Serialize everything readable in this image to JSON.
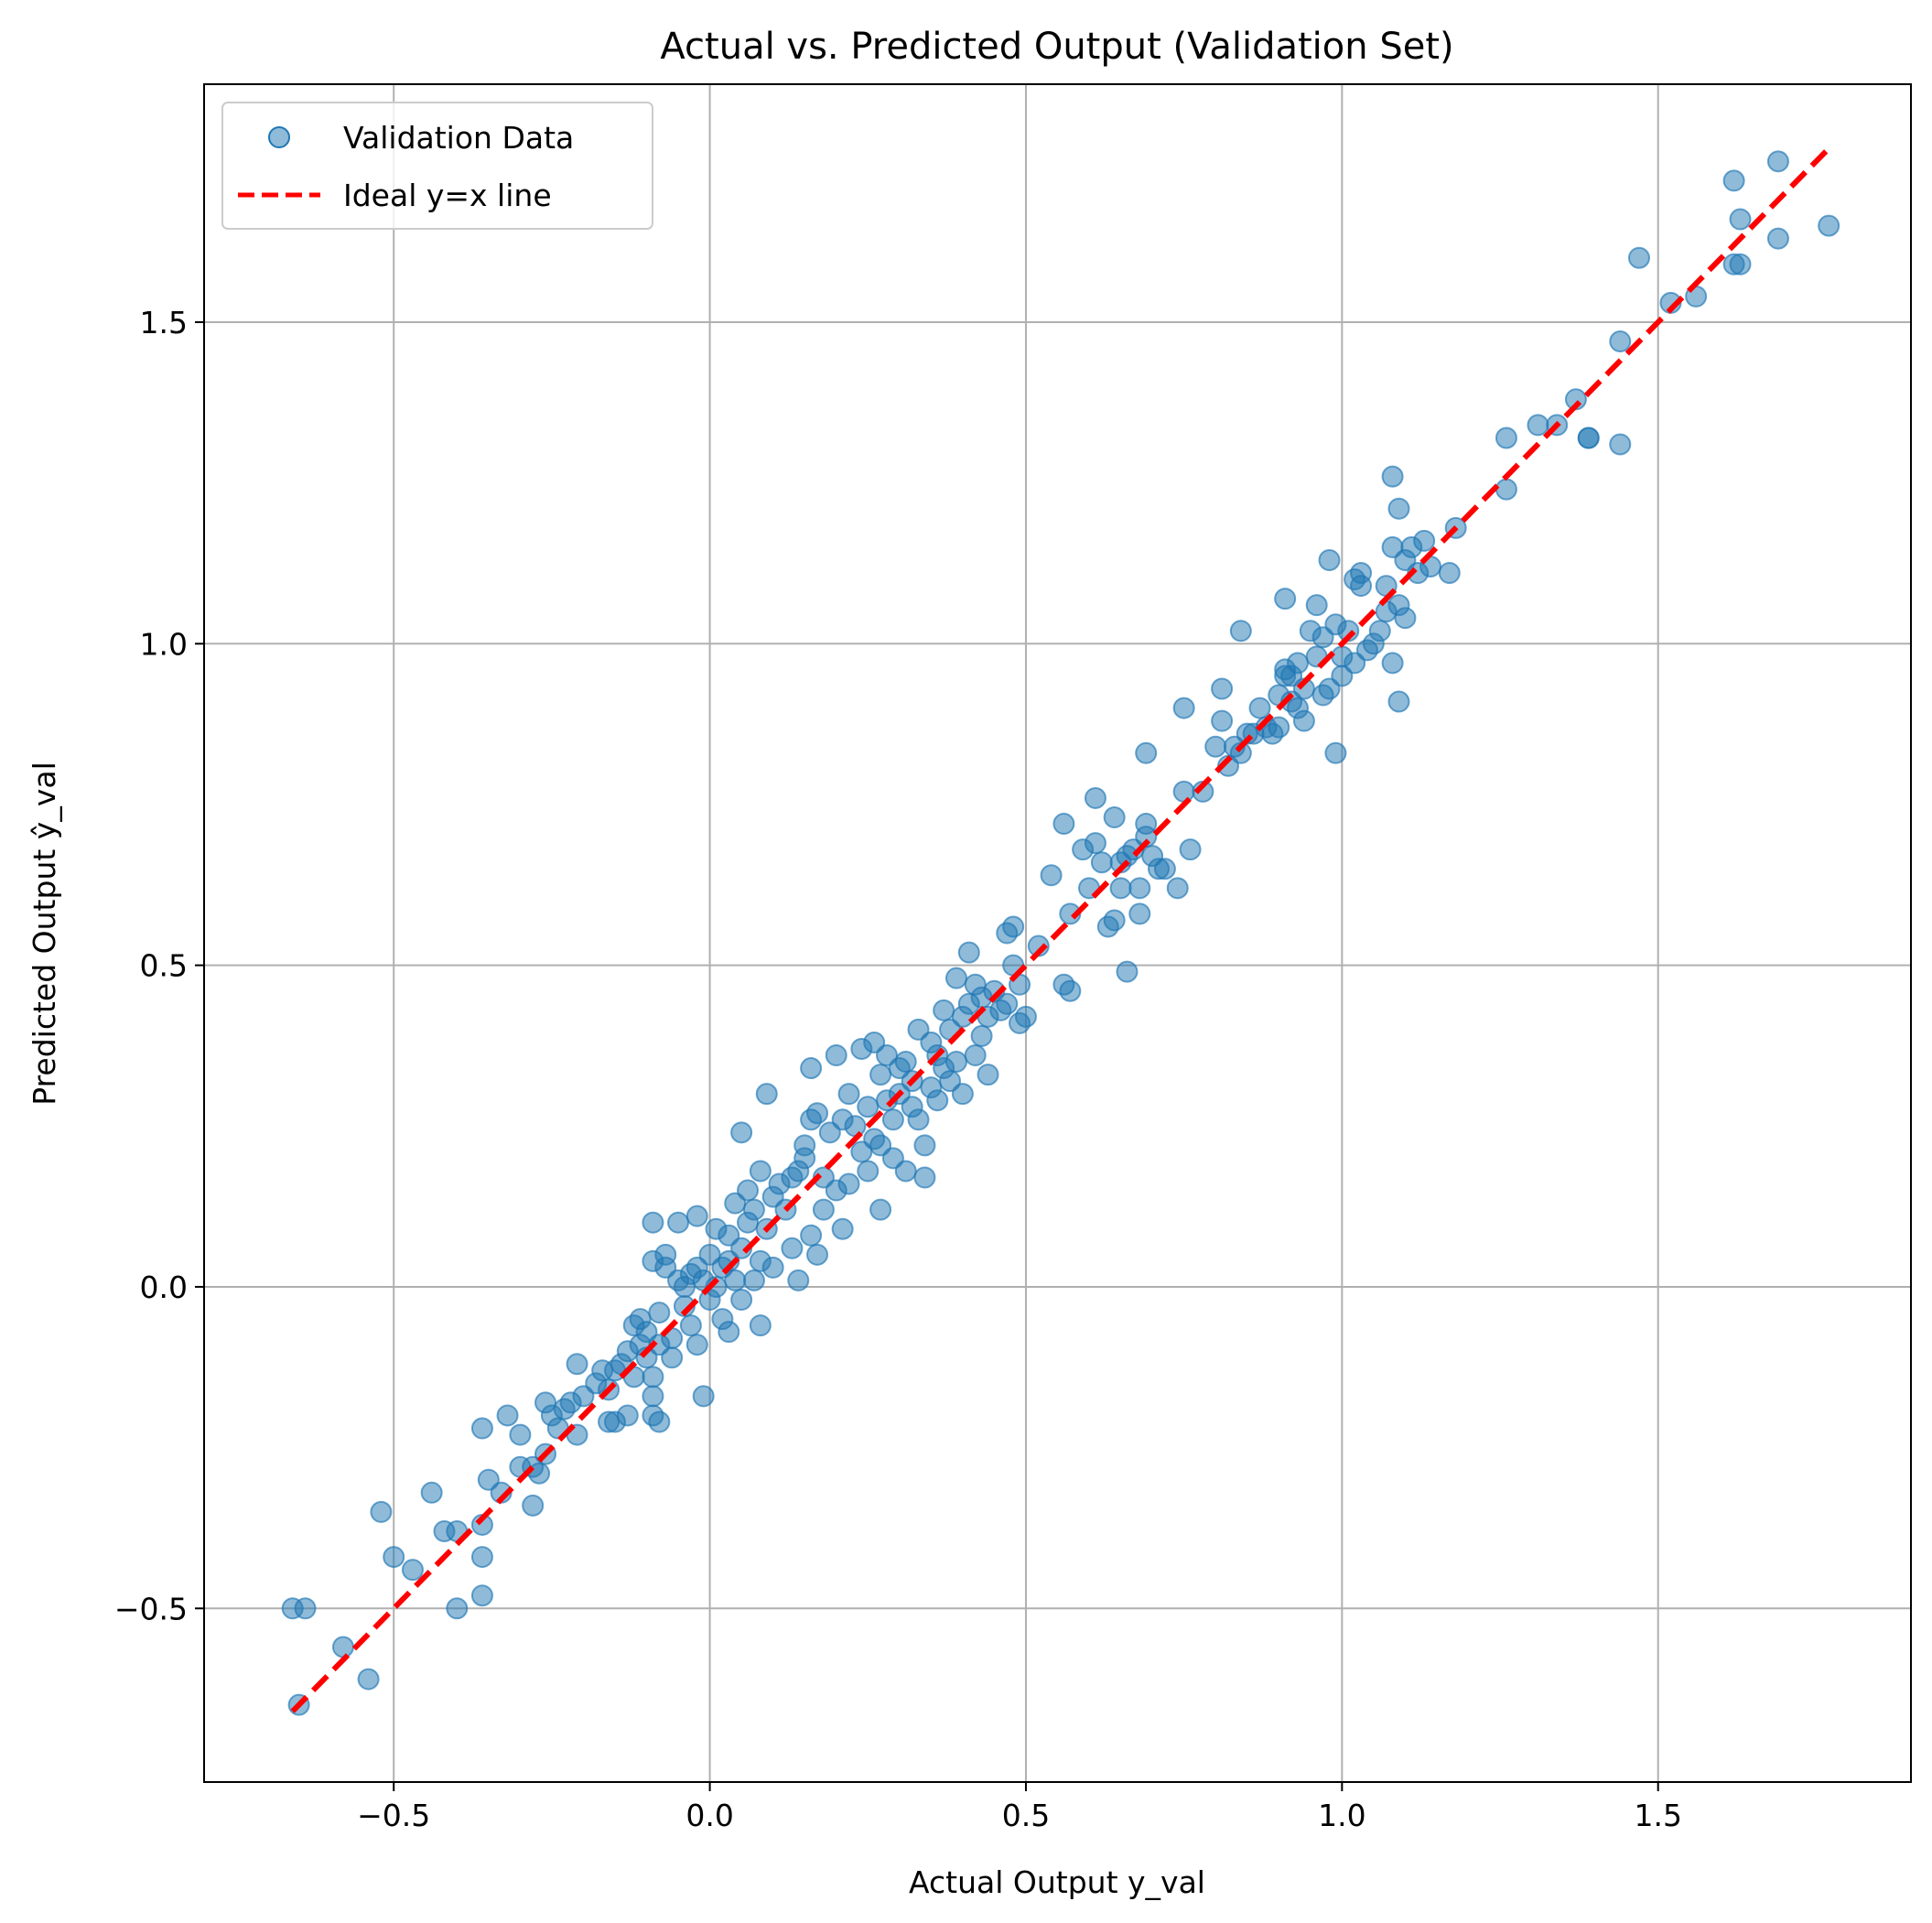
{
  "chart_data": {
    "type": "scatter",
    "title": "Actual vs. Predicted Output (Validation Set)",
    "xlabel": "Actual Output y_val",
    "ylabel": "Predicted Output ŷ_val",
    "xlim": [
      -0.8,
      1.9
    ],
    "ylim": [
      -0.77,
      1.87
    ],
    "xticks": [
      -0.5,
      0.0,
      0.5,
      1.0,
      1.5
    ],
    "yticks": [
      -0.5,
      0.0,
      0.5,
      1.0,
      1.5
    ],
    "xtick_labels": [
      "−0.5",
      "0.0",
      "0.5",
      "1.0",
      "1.5"
    ],
    "ytick_labels": [
      "−0.5",
      "0.0",
      "0.5",
      "1.0",
      "1.5"
    ],
    "grid": true,
    "legend": {
      "position": "top-left",
      "entries": [
        "Validation Data",
        "Ideal y=x line"
      ]
    },
    "series": [
      {
        "name": "Validation Data",
        "type": "scatter",
        "color": "#1f77b4",
        "points": [
          [
            -0.66,
            -0.5
          ],
          [
            -0.64,
            -0.5
          ],
          [
            -0.65,
            -0.65
          ],
          [
            -0.58,
            -0.56
          ],
          [
            -0.54,
            -0.61
          ],
          [
            -0.52,
            -0.35
          ],
          [
            -0.5,
            -0.42
          ],
          [
            -0.47,
            -0.44
          ],
          [
            -0.44,
            -0.32
          ],
          [
            -0.42,
            -0.38
          ],
          [
            -0.4,
            -0.38
          ],
          [
            -0.4,
            -0.5
          ],
          [
            -0.36,
            -0.22
          ],
          [
            -0.36,
            -0.37
          ],
          [
            -0.36,
            -0.42
          ],
          [
            -0.36,
            -0.48
          ],
          [
            -0.35,
            -0.3
          ],
          [
            -0.33,
            -0.32
          ],
          [
            -0.32,
            -0.2
          ],
          [
            -0.3,
            -0.23
          ],
          [
            -0.3,
            -0.28
          ],
          [
            -0.28,
            -0.28
          ],
          [
            -0.28,
            -0.34
          ],
          [
            -0.27,
            -0.29
          ],
          [
            -0.26,
            -0.26
          ],
          [
            -0.26,
            -0.18
          ],
          [
            -0.25,
            -0.2
          ],
          [
            -0.24,
            -0.22
          ],
          [
            -0.23,
            -0.19
          ],
          [
            -0.22,
            -0.18
          ],
          [
            -0.21,
            -0.23
          ],
          [
            -0.21,
            -0.12
          ],
          [
            -0.2,
            -0.17
          ],
          [
            -0.18,
            -0.15
          ],
          [
            -0.17,
            -0.13
          ],
          [
            -0.16,
            -0.21
          ],
          [
            -0.16,
            -0.16
          ],
          [
            -0.15,
            -0.13
          ],
          [
            -0.15,
            -0.21
          ],
          [
            -0.14,
            -0.12
          ],
          [
            -0.13,
            -0.2
          ],
          [
            -0.13,
            -0.1
          ],
          [
            -0.12,
            -0.06
          ],
          [
            -0.12,
            -0.14
          ],
          [
            -0.11,
            -0.09
          ],
          [
            -0.11,
            -0.05
          ],
          [
            -0.1,
            -0.07
          ],
          [
            -0.1,
            -0.11
          ],
          [
            -0.09,
            -0.14
          ],
          [
            -0.09,
            -0.17
          ],
          [
            -0.09,
            -0.2
          ],
          [
            -0.09,
            0.04
          ],
          [
            -0.09,
            0.1
          ],
          [
            -0.08,
            -0.21
          ],
          [
            -0.08,
            -0.09
          ],
          [
            -0.08,
            -0.04
          ],
          [
            -0.07,
            0.03
          ],
          [
            -0.07,
            0.05
          ],
          [
            -0.06,
            -0.11
          ],
          [
            -0.06,
            -0.08
          ],
          [
            -0.05,
            0.1
          ],
          [
            -0.05,
            0.01
          ],
          [
            -0.04,
            -0.03
          ],
          [
            -0.04,
            0.0
          ],
          [
            -0.03,
            -0.06
          ],
          [
            -0.03,
            0.02
          ],
          [
            -0.02,
            -0.09
          ],
          [
            -0.02,
            0.03
          ],
          [
            -0.02,
            0.11
          ],
          [
            -0.01,
            -0.17
          ],
          [
            -0.01,
            0.01
          ],
          [
            0.0,
            0.05
          ],
          [
            0.0,
            -0.02
          ],
          [
            0.01,
            0.0
          ],
          [
            0.01,
            0.09
          ],
          [
            0.02,
            0.03
          ],
          [
            0.02,
            -0.05
          ],
          [
            0.03,
            0.04
          ],
          [
            0.03,
            0.08
          ],
          [
            0.03,
            -0.07
          ],
          [
            0.04,
            0.13
          ],
          [
            0.04,
            0.01
          ],
          [
            0.05,
            0.24
          ],
          [
            0.05,
            -0.02
          ],
          [
            0.05,
            0.06
          ],
          [
            0.06,
            0.1
          ],
          [
            0.06,
            0.15
          ],
          [
            0.07,
            0.12
          ],
          [
            0.07,
            0.01
          ],
          [
            0.08,
            0.18
          ],
          [
            0.08,
            -0.06
          ],
          [
            0.08,
            0.04
          ],
          [
            0.09,
            0.3
          ],
          [
            0.09,
            0.09
          ],
          [
            0.1,
            0.14
          ],
          [
            0.1,
            0.03
          ],
          [
            0.11,
            0.16
          ],
          [
            0.12,
            0.12
          ],
          [
            0.13,
            0.17
          ],
          [
            0.13,
            0.06
          ],
          [
            0.14,
            0.01
          ],
          [
            0.14,
            0.18
          ],
          [
            0.15,
            0.22
          ],
          [
            0.15,
            0.2
          ],
          [
            0.16,
            0.26
          ],
          [
            0.16,
            0.34
          ],
          [
            0.16,
            0.08
          ],
          [
            0.17,
            0.27
          ],
          [
            0.17,
            0.05
          ],
          [
            0.18,
            0.12
          ],
          [
            0.18,
            0.17
          ],
          [
            0.19,
            0.24
          ],
          [
            0.2,
            0.36
          ],
          [
            0.2,
            0.15
          ],
          [
            0.21,
            0.26
          ],
          [
            0.21,
            0.09
          ],
          [
            0.22,
            0.3
          ],
          [
            0.22,
            0.16
          ],
          [
            0.23,
            0.25
          ],
          [
            0.24,
            0.37
          ],
          [
            0.24,
            0.21
          ],
          [
            0.25,
            0.28
          ],
          [
            0.25,
            0.18
          ],
          [
            0.26,
            0.23
          ],
          [
            0.26,
            0.38
          ],
          [
            0.27,
            0.33
          ],
          [
            0.27,
            0.22
          ],
          [
            0.27,
            0.12
          ],
          [
            0.28,
            0.36
          ],
          [
            0.28,
            0.29
          ],
          [
            0.29,
            0.2
          ],
          [
            0.29,
            0.26
          ],
          [
            0.3,
            0.34
          ],
          [
            0.3,
            0.3
          ],
          [
            0.31,
            0.35
          ],
          [
            0.31,
            0.18
          ],
          [
            0.32,
            0.28
          ],
          [
            0.32,
            0.32
          ],
          [
            0.33,
            0.4
          ],
          [
            0.33,
            0.26
          ],
          [
            0.34,
            0.22
          ],
          [
            0.34,
            0.17
          ],
          [
            0.35,
            0.38
          ],
          [
            0.35,
            0.31
          ],
          [
            0.36,
            0.36
          ],
          [
            0.36,
            0.29
          ],
          [
            0.37,
            0.43
          ],
          [
            0.37,
            0.34
          ],
          [
            0.38,
            0.4
          ],
          [
            0.38,
            0.32
          ],
          [
            0.39,
            0.48
          ],
          [
            0.39,
            0.35
          ],
          [
            0.4,
            0.3
          ],
          [
            0.4,
            0.42
          ],
          [
            0.41,
            0.52
          ],
          [
            0.41,
            0.44
          ],
          [
            0.42,
            0.36
          ],
          [
            0.42,
            0.47
          ],
          [
            0.43,
            0.39
          ],
          [
            0.43,
            0.45
          ],
          [
            0.44,
            0.33
          ],
          [
            0.44,
            0.42
          ],
          [
            0.45,
            0.46
          ],
          [
            0.46,
            0.43
          ],
          [
            0.47,
            0.55
          ],
          [
            0.47,
            0.44
          ],
          [
            0.48,
            0.5
          ],
          [
            0.48,
            0.56
          ],
          [
            0.49,
            0.47
          ],
          [
            0.49,
            0.41
          ],
          [
            0.5,
            0.42
          ],
          [
            0.52,
            0.53
          ],
          [
            0.54,
            0.64
          ],
          [
            0.56,
            0.72
          ],
          [
            0.56,
            0.47
          ],
          [
            0.57,
            0.58
          ],
          [
            0.57,
            0.46
          ],
          [
            0.59,
            0.68
          ],
          [
            0.6,
            0.62
          ],
          [
            0.61,
            0.76
          ],
          [
            0.61,
            0.69
          ],
          [
            0.62,
            0.66
          ],
          [
            0.63,
            0.56
          ],
          [
            0.64,
            0.57
          ],
          [
            0.64,
            0.73
          ],
          [
            0.65,
            0.62
          ],
          [
            0.65,
            0.66
          ],
          [
            0.66,
            0.67
          ],
          [
            0.66,
            0.49
          ],
          [
            0.67,
            0.68
          ],
          [
            0.68,
            0.62
          ],
          [
            0.68,
            0.58
          ],
          [
            0.69,
            0.72
          ],
          [
            0.69,
            0.7
          ],
          [
            0.69,
            0.83
          ],
          [
            0.7,
            0.67
          ],
          [
            0.71,
            0.65
          ],
          [
            0.72,
            0.65
          ],
          [
            0.74,
            0.62
          ],
          [
            0.75,
            0.77
          ],
          [
            0.75,
            0.9
          ],
          [
            0.76,
            0.68
          ],
          [
            0.78,
            0.77
          ],
          [
            0.8,
            0.84
          ],
          [
            0.81,
            0.93
          ],
          [
            0.81,
            0.88
          ],
          [
            0.82,
            0.81
          ],
          [
            0.83,
            0.84
          ],
          [
            0.84,
            1.02
          ],
          [
            0.84,
            0.83
          ],
          [
            0.85,
            0.86
          ],
          [
            0.86,
            0.86
          ],
          [
            0.87,
            0.9
          ],
          [
            0.88,
            0.87
          ],
          [
            0.89,
            0.86
          ],
          [
            0.9,
            0.92
          ],
          [
            0.9,
            0.87
          ],
          [
            0.91,
            0.95
          ],
          [
            0.91,
            1.07
          ],
          [
            0.91,
            0.96
          ],
          [
            0.92,
            0.95
          ],
          [
            0.92,
            0.91
          ],
          [
            0.93,
            0.9
          ],
          [
            0.93,
            0.97
          ],
          [
            0.94,
            0.93
          ],
          [
            0.94,
            0.88
          ],
          [
            0.95,
            1.02
          ],
          [
            0.96,
            1.06
          ],
          [
            0.96,
            0.98
          ],
          [
            0.97,
            0.92
          ],
          [
            0.97,
            1.01
          ],
          [
            0.98,
            1.13
          ],
          [
            0.98,
            0.93
          ],
          [
            0.99,
            0.83
          ],
          [
            0.99,
            1.03
          ],
          [
            1.0,
            0.98
          ],
          [
            1.0,
            0.95
          ],
          [
            1.01,
            1.02
          ],
          [
            1.02,
            1.1
          ],
          [
            1.02,
            0.97
          ],
          [
            1.03,
            1.11
          ],
          [
            1.03,
            1.09
          ],
          [
            1.04,
            0.99
          ],
          [
            1.05,
            1.0
          ],
          [
            1.06,
            1.02
          ],
          [
            1.07,
            1.05
          ],
          [
            1.07,
            1.09
          ],
          [
            1.08,
            0.97
          ],
          [
            1.08,
            1.26
          ],
          [
            1.08,
            1.15
          ],
          [
            1.09,
            0.91
          ],
          [
            1.09,
            1.06
          ],
          [
            1.09,
            1.21
          ],
          [
            1.1,
            1.04
          ],
          [
            1.1,
            1.13
          ],
          [
            1.11,
            1.15
          ],
          [
            1.12,
            1.11
          ],
          [
            1.13,
            1.16
          ],
          [
            1.14,
            1.12
          ],
          [
            1.17,
            1.11
          ],
          [
            1.18,
            1.18
          ],
          [
            1.26,
            1.24
          ],
          [
            1.26,
            1.32
          ],
          [
            1.31,
            1.34
          ],
          [
            1.34,
            1.34
          ],
          [
            1.37,
            1.38
          ],
          [
            1.39,
            1.32
          ],
          [
            1.39,
            1.32
          ],
          [
            1.44,
            1.31
          ],
          [
            1.44,
            1.47
          ],
          [
            1.47,
            1.6
          ],
          [
            1.52,
            1.53
          ],
          [
            1.56,
            1.54
          ],
          [
            1.62,
            1.59
          ],
          [
            1.62,
            1.72
          ],
          [
            1.63,
            1.66
          ],
          [
            1.63,
            1.59
          ],
          [
            1.69,
            1.75
          ],
          [
            1.69,
            1.63
          ],
          [
            1.77,
            1.65
          ]
        ]
      },
      {
        "name": "Ideal y=x line",
        "type": "line",
        "color": "#ff0000",
        "style": "dashed",
        "x": [
          -0.66,
          1.77
        ],
        "y": [
          -0.66,
          1.77
        ]
      }
    ]
  }
}
